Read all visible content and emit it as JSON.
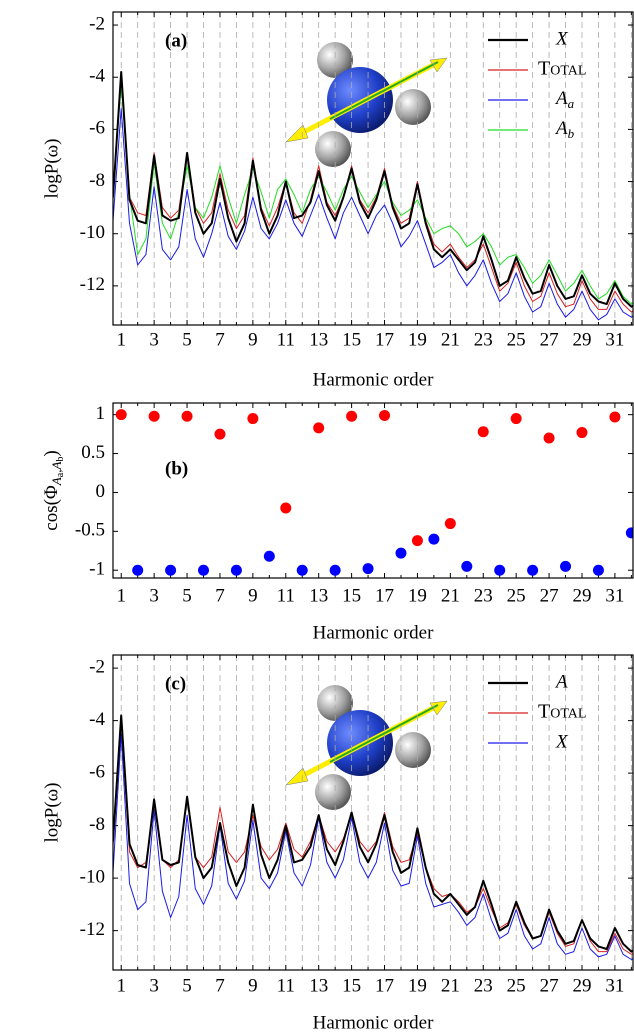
{
  "chart_data": [
    {
      "type": "line",
      "label": "(a)",
      "xlabel": "Harmonic order",
      "ylabel": "logP(ω)",
      "xlim": [
        0.5,
        32.1
      ],
      "ylim": [
        -13.5,
        -1.5
      ],
      "xticks": [
        1,
        3,
        5,
        7,
        9,
        11,
        13,
        15,
        17,
        19,
        21,
        23,
        25,
        27,
        29,
        31
      ],
      "xminorticks": [
        2,
        4,
        6,
        8,
        10,
        12,
        14,
        16,
        18,
        20,
        22,
        24,
        26,
        28,
        30,
        32
      ],
      "yticks": [
        -12,
        -10,
        -8,
        -6,
        -4,
        -2
      ],
      "grid": true,
      "legend": "upper right",
      "x": [
        0.5,
        1,
        1.5,
        2,
        2.5,
        3,
        3.5,
        4,
        4.5,
        5,
        5.5,
        6,
        6.5,
        7,
        7.5,
        8,
        8.5,
        9,
        9.5,
        10,
        10.5,
        11,
        11.5,
        12,
        12.5,
        13,
        13.5,
        14,
        14.5,
        15,
        15.5,
        16,
        16.5,
        17,
        17.5,
        18,
        18.5,
        19,
        19.5,
        20,
        20.5,
        21,
        21.5,
        22,
        22.5,
        23,
        23.5,
        24,
        24.5,
        25,
        25.5,
        26,
        26.5,
        27,
        27.5,
        28,
        28.5,
        29,
        29.5,
        30,
        30.5,
        31,
        31.5,
        32,
        32.5
      ],
      "series": [
        {
          "name": "Total",
          "color": "#d62020",
          "values": [
            -8.7,
            -4.0,
            -8.6,
            -9.2,
            -9.3,
            -6.9,
            -9.0,
            -9.4,
            -9.1,
            -6.9,
            -9.0,
            -9.6,
            -9.2,
            -7.7,
            -9.1,
            -9.8,
            -9.3,
            -7.1,
            -9.0,
            -9.7,
            -9.0,
            -8.0,
            -9.2,
            -9.6,
            -8.7,
            -7.4,
            -8.8,
            -9.3,
            -8.6,
            -7.4,
            -8.7,
            -9.2,
            -8.6,
            -7.5,
            -8.9,
            -9.6,
            -9.4,
            -8.0,
            -9.5,
            -10.4,
            -10.7,
            -10.4,
            -10.9,
            -11.3,
            -11.0,
            -10.4,
            -11.3,
            -12.2,
            -11.9,
            -11.1,
            -12.0,
            -12.6,
            -12.4,
            -11.5,
            -12.3,
            -12.8,
            -12.7,
            -11.8,
            -12.5,
            -12.9,
            -12.9,
            -12.2,
            -12.7,
            -13.0,
            -12.8
          ]
        },
        {
          "name": "Aa",
          "color": "#1a1ae6",
          "values": [
            -9.5,
            -5.2,
            -9.6,
            -11.2,
            -10.8,
            -8.2,
            -10.6,
            -11.0,
            -10.5,
            -8.3,
            -10.2,
            -10.9,
            -10.0,
            -8.8,
            -10.1,
            -10.6,
            -9.9,
            -8.6,
            -9.8,
            -10.2,
            -9.6,
            -8.7,
            -9.6,
            -10.1,
            -9.3,
            -8.5,
            -9.4,
            -10.2,
            -9.2,
            -8.6,
            -9.3,
            -10.0,
            -9.3,
            -8.9,
            -9.6,
            -10.5,
            -10.1,
            -9.5,
            -10.4,
            -11.3,
            -11.1,
            -10.8,
            -11.5,
            -12.0,
            -11.6,
            -11.0,
            -11.9,
            -12.6,
            -12.3,
            -11.5,
            -12.4,
            -13.0,
            -12.8,
            -11.9,
            -12.7,
            -13.2,
            -12.9,
            -12.2,
            -12.9,
            -13.3,
            -13.1,
            -12.5,
            -13.0,
            -13.2,
            -12.9
          ]
        },
        {
          "name": "Ab",
          "color": "#22dd22",
          "values": [
            -8.4,
            -4.3,
            -8.5,
            -10.8,
            -10.2,
            -7.3,
            -9.6,
            -10.2,
            -9.2,
            -7.4,
            -9.0,
            -9.4,
            -8.6,
            -7.4,
            -8.6,
            -9.6,
            -8.5,
            -7.5,
            -8.4,
            -9.4,
            -8.3,
            -7.9,
            -8.5,
            -9.2,
            -8.3,
            -7.8,
            -8.4,
            -9.1,
            -8.3,
            -7.8,
            -8.4,
            -9.0,
            -8.5,
            -8.0,
            -8.8,
            -9.3,
            -9.1,
            -8.7,
            -9.4,
            -10.0,
            -9.8,
            -9.7,
            -10.0,
            -10.5,
            -10.3,
            -10.0,
            -10.5,
            -11.2,
            -10.9,
            -10.8,
            -11.3,
            -11.9,
            -11.6,
            -11.0,
            -11.6,
            -12.2,
            -11.9,
            -11.4,
            -12.0,
            -12.5,
            -12.3,
            -11.8,
            -12.4,
            -12.7,
            -12.5
          ]
        },
        {
          "name": "X",
          "color": "#000000",
          "values": [
            -8.6,
            -3.8,
            -8.7,
            -9.5,
            -9.6,
            -7.0,
            -9.3,
            -9.5,
            -9.4,
            -6.9,
            -9.2,
            -10.0,
            -9.6,
            -7.9,
            -9.4,
            -10.3,
            -9.6,
            -7.2,
            -9.1,
            -10.0,
            -9.3,
            -8.0,
            -9.4,
            -9.3,
            -8.8,
            -7.6,
            -8.9,
            -9.5,
            -8.6,
            -7.5,
            -8.8,
            -9.4,
            -8.7,
            -7.6,
            -9.0,
            -9.8,
            -9.6,
            -8.1,
            -9.6,
            -10.6,
            -10.9,
            -10.6,
            -11.0,
            -11.4,
            -11.1,
            -10.1,
            -11.0,
            -12.0,
            -11.8,
            -10.9,
            -11.7,
            -12.3,
            -12.2,
            -11.2,
            -12.0,
            -12.5,
            -12.4,
            -11.6,
            -12.3,
            -12.6,
            -12.7,
            -11.9,
            -12.5,
            -12.8,
            -12.6
          ]
        }
      ]
    },
    {
      "type": "scatter",
      "label": "(b)",
      "xlabel": "Harmonic order",
      "ylabel": "cos(ΦAa,Ab)",
      "xlim": [
        0.5,
        32.1
      ],
      "ylim": [
        -1.1,
        1.15
      ],
      "xticks": [
        1,
        3,
        5,
        7,
        9,
        11,
        13,
        15,
        17,
        19,
        21,
        23,
        25,
        27,
        29,
        31
      ],
      "xminorticks": [
        2,
        4,
        6,
        8,
        10,
        12,
        14,
        16,
        18,
        20,
        22,
        24,
        26,
        28,
        30,
        32
      ],
      "yticks": [
        -1,
        -0.5,
        0,
        0.5,
        1
      ],
      "grid": false,
      "series": [
        {
          "color": "#ff0000",
          "x": [
            1,
            3,
            5,
            7,
            9,
            11,
            13,
            15,
            17,
            19,
            21,
            23,
            25,
            27,
            29,
            31
          ],
          "values": [
            1,
            0.98,
            0.98,
            0.75,
            0.95,
            -0.2,
            0.83,
            0.98,
            0.99,
            -0.62,
            -0.4,
            0.78,
            0.95,
            0.7,
            0.77,
            0.97
          ]
        },
        {
          "color": "#0000ff",
          "x": [
            2,
            4,
            6,
            8,
            10,
            12,
            14,
            16,
            18,
            20,
            22,
            24,
            26,
            28,
            30,
            32
          ],
          "values": [
            -1,
            -1,
            -1,
            -1,
            -0.82,
            -1,
            -1,
            -0.98,
            -0.78,
            -0.6,
            -0.95,
            -1,
            -1,
            -0.95,
            -1,
            -0.52
          ]
        }
      ]
    },
    {
      "type": "line",
      "label": "(c)",
      "xlabel": "Harmonic order",
      "ylabel": "logP(ω)",
      "xlim": [
        0.5,
        32.1
      ],
      "ylim": [
        -13.5,
        -1.5
      ],
      "xticks": [
        1,
        3,
        5,
        7,
        9,
        11,
        13,
        15,
        17,
        19,
        21,
        23,
        25,
        27,
        29,
        31
      ],
      "xminorticks": [
        2,
        4,
        6,
        8,
        10,
        12,
        14,
        16,
        18,
        20,
        22,
        24,
        26,
        28,
        30,
        32
      ],
      "yticks": [
        -12,
        -10,
        -8,
        -6,
        -4,
        -2
      ],
      "grid": true,
      "legend": "upper right",
      "x": [
        0.5,
        1,
        1.5,
        2,
        2.5,
        3,
        3.5,
        4,
        4.5,
        5,
        5.5,
        6,
        6.5,
        7,
        7.5,
        8,
        8.5,
        9,
        9.5,
        10,
        10.5,
        11,
        11.5,
        12,
        12.5,
        13,
        13.5,
        14,
        14.5,
        15,
        15.5,
        16,
        16.5,
        17,
        17.5,
        18,
        18.5,
        19,
        19.5,
        20,
        20.5,
        21,
        21.5,
        22,
        22.5,
        23,
        23.5,
        24,
        24.5,
        25,
        25.5,
        26,
        26.5,
        27,
        27.5,
        28,
        28.5,
        29,
        29.5,
        30,
        30.5,
        31,
        31.5,
        32,
        32.5
      ],
      "series": [
        {
          "name": "Total",
          "color": "#d62020",
          "values": [
            -8.8,
            -4.0,
            -9.0,
            -9.6,
            -9.4,
            -7.2,
            -9.3,
            -9.6,
            -9.3,
            -7.0,
            -9.2,
            -9.6,
            -9.2,
            -7.3,
            -9.0,
            -9.4,
            -9.0,
            -7.6,
            -8.8,
            -9.3,
            -8.9,
            -7.9,
            -8.9,
            -9.2,
            -8.6,
            -7.6,
            -8.6,
            -9.0,
            -8.5,
            -7.5,
            -8.6,
            -9.0,
            -8.6,
            -7.5,
            -8.8,
            -9.4,
            -9.3,
            -8.3,
            -9.6,
            -10.4,
            -10.7,
            -10.6,
            -10.9,
            -11.3,
            -11.1,
            -10.4,
            -11.2,
            -11.9,
            -11.7,
            -11.0,
            -11.8,
            -12.3,
            -12.2,
            -11.3,
            -12.1,
            -12.6,
            -12.5,
            -11.6,
            -12.4,
            -12.8,
            -12.8,
            -12.1,
            -12.7,
            -12.9,
            -12.8
          ]
        },
        {
          "name": "X",
          "color": "#1a1ae6",
          "values": [
            -9.8,
            -4.5,
            -10.2,
            -11.2,
            -10.9,
            -7.4,
            -10.5,
            -11.5,
            -10.7,
            -7.6,
            -10.4,
            -11.0,
            -10.3,
            -8.0,
            -10.2,
            -10.8,
            -10.1,
            -7.8,
            -10.0,
            -10.4,
            -9.8,
            -8.2,
            -9.8,
            -10.3,
            -9.5,
            -7.7,
            -9.4,
            -10.0,
            -9.3,
            -7.7,
            -9.4,
            -10.0,
            -9.4,
            -7.9,
            -9.7,
            -10.3,
            -10.2,
            -8.4,
            -10.2,
            -11.1,
            -11.0,
            -10.9,
            -11.3,
            -11.8,
            -11.5,
            -10.6,
            -11.6,
            -12.3,
            -12.1,
            -11.2,
            -12.2,
            -12.7,
            -12.5,
            -11.5,
            -12.5,
            -12.9,
            -12.8,
            -11.9,
            -12.7,
            -13.0,
            -12.9,
            -12.2,
            -12.9,
            -13.1,
            -12.9
          ]
        },
        {
          "name": "A",
          "color": "#000000",
          "values": [
            -8.6,
            -3.8,
            -8.7,
            -9.5,
            -9.6,
            -7.0,
            -9.3,
            -9.5,
            -9.4,
            -6.9,
            -9.2,
            -10.0,
            -9.6,
            -7.9,
            -9.4,
            -10.3,
            -9.6,
            -7.2,
            -9.1,
            -10.0,
            -9.3,
            -8.0,
            -9.4,
            -9.3,
            -8.8,
            -7.6,
            -8.9,
            -9.5,
            -8.6,
            -7.5,
            -8.8,
            -9.4,
            -8.7,
            -7.6,
            -9.0,
            -9.8,
            -9.6,
            -8.1,
            -9.6,
            -10.6,
            -10.9,
            -10.6,
            -11.0,
            -11.4,
            -11.1,
            -10.1,
            -11.0,
            -12.0,
            -11.8,
            -10.9,
            -11.7,
            -12.3,
            -12.2,
            -11.2,
            -12.0,
            -12.5,
            -12.4,
            -11.6,
            -12.3,
            -12.6,
            -12.7,
            -11.9,
            -12.5,
            -12.8,
            -12.6
          ]
        }
      ]
    }
  ]
}
